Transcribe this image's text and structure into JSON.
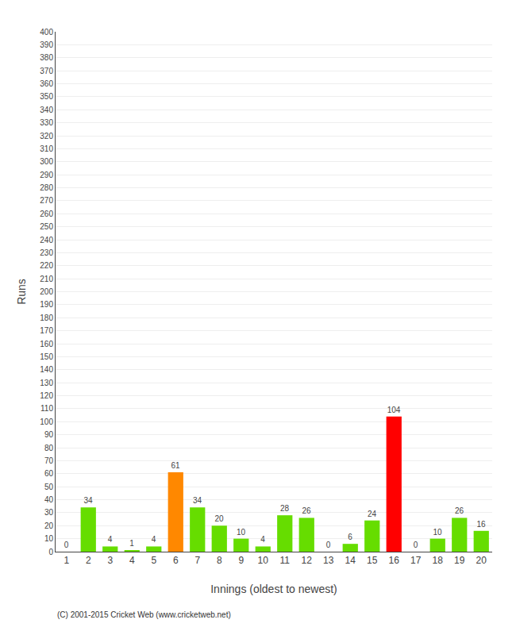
{
  "chart_data": {
    "type": "bar",
    "xlabel": "Innings (oldest to newest)",
    "ylabel": "Runs",
    "x": [
      1,
      2,
      3,
      4,
      5,
      6,
      7,
      8,
      9,
      10,
      11,
      12,
      13,
      14,
      15,
      16,
      17,
      18,
      19,
      20
    ],
    "values": [
      0,
      34,
      4,
      1,
      4,
      61,
      34,
      20,
      10,
      4,
      28,
      26,
      0,
      6,
      24,
      104,
      0,
      10,
      26,
      16
    ],
    "colors": [
      "#66dd00",
      "#66dd00",
      "#66dd00",
      "#66dd00",
      "#66dd00",
      "#ff8800",
      "#66dd00",
      "#66dd00",
      "#66dd00",
      "#66dd00",
      "#66dd00",
      "#66dd00",
      "#66dd00",
      "#66dd00",
      "#66dd00",
      "#ff0000",
      "#66dd00",
      "#66dd00",
      "#66dd00",
      "#66dd00"
    ],
    "xlim": [
      0.5,
      20.5
    ],
    "xticks": [
      1,
      2,
      3,
      4,
      5,
      6,
      7,
      8,
      9,
      10,
      11,
      12,
      13,
      14,
      15,
      16,
      17,
      18,
      19,
      20
    ],
    "ylim": [
      0,
      400
    ],
    "yticks": [
      0,
      10,
      20,
      30,
      40,
      50,
      60,
      70,
      80,
      90,
      100,
      110,
      120,
      130,
      140,
      150,
      160,
      170,
      180,
      190,
      200,
      210,
      220,
      230,
      240,
      250,
      260,
      270,
      280,
      290,
      300,
      310,
      320,
      330,
      340,
      350,
      360,
      370,
      380,
      390,
      400
    ],
    "grid": true,
    "data_labels": true,
    "annotations": [
      "(C) 2001-2015 Cricket Web (www.cricketweb.net)"
    ]
  }
}
